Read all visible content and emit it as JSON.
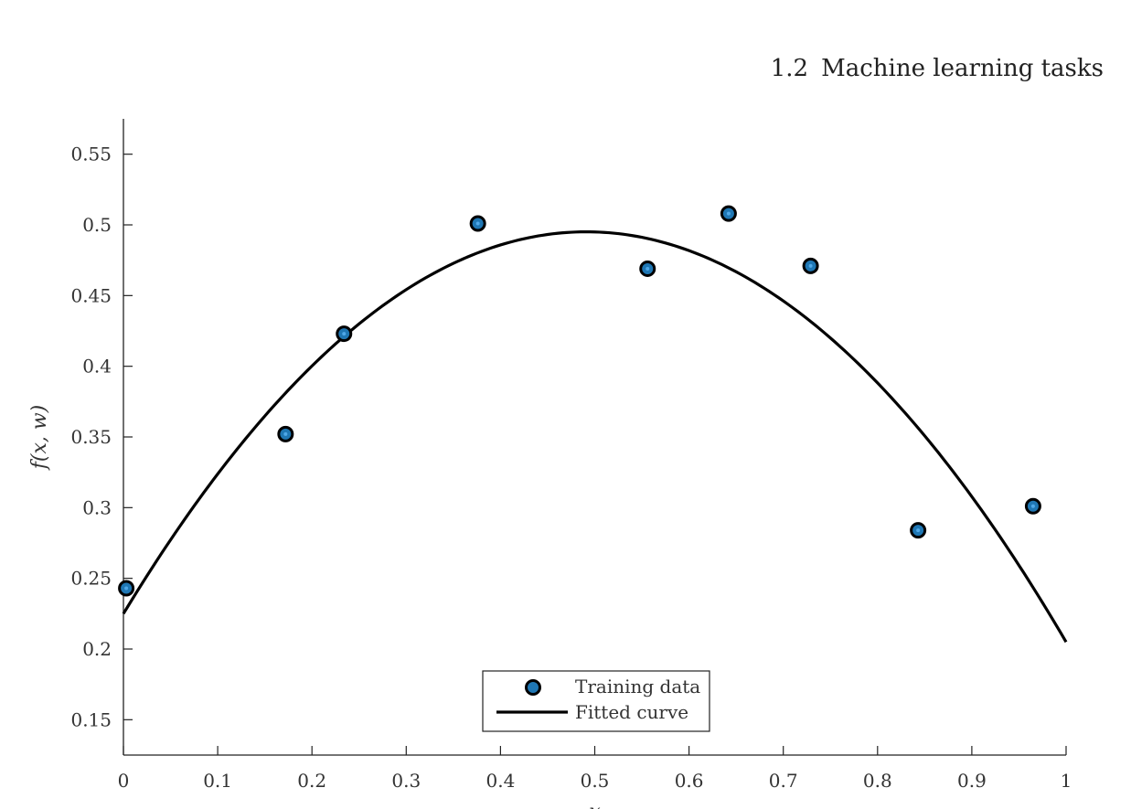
{
  "header": {
    "section_number": "1.2",
    "section_title": "Machine learning tasks"
  },
  "chart_data": {
    "type": "scatter",
    "title": "",
    "xlabel": "x",
    "ylabel": "f(x, w)",
    "xlim": [
      0,
      1
    ],
    "ylim": [
      0.125,
      0.575
    ],
    "xticks": [
      "0",
      "0.1",
      "0.2",
      "0.3",
      "0.4",
      "0.5",
      "0.6",
      "0.7",
      "0.8",
      "0.9",
      "1"
    ],
    "yticks": [
      "0.15",
      "0.2",
      "0.25",
      "0.3",
      "0.35",
      "0.4",
      "0.45",
      "0.5",
      "0.55"
    ],
    "grid": false,
    "legend_position": "bottom-center",
    "series": [
      {
        "name": "Training data",
        "type": "scatter",
        "color": "#1f77b4",
        "x": [
          0.003,
          0.172,
          0.234,
          0.376,
          0.556,
          0.642,
          0.729,
          0.843,
          0.965
        ],
        "y": [
          0.243,
          0.352,
          0.423,
          0.501,
          0.469,
          0.508,
          0.471,
          0.284,
          0.301
        ]
      },
      {
        "name": "Fitted curve",
        "type": "line",
        "color": "#000000",
        "model": "quadratic",
        "coefficients": [
          0.225,
          1.1,
          -1.12
        ],
        "x": [
          0,
          1
        ]
      }
    ]
  }
}
